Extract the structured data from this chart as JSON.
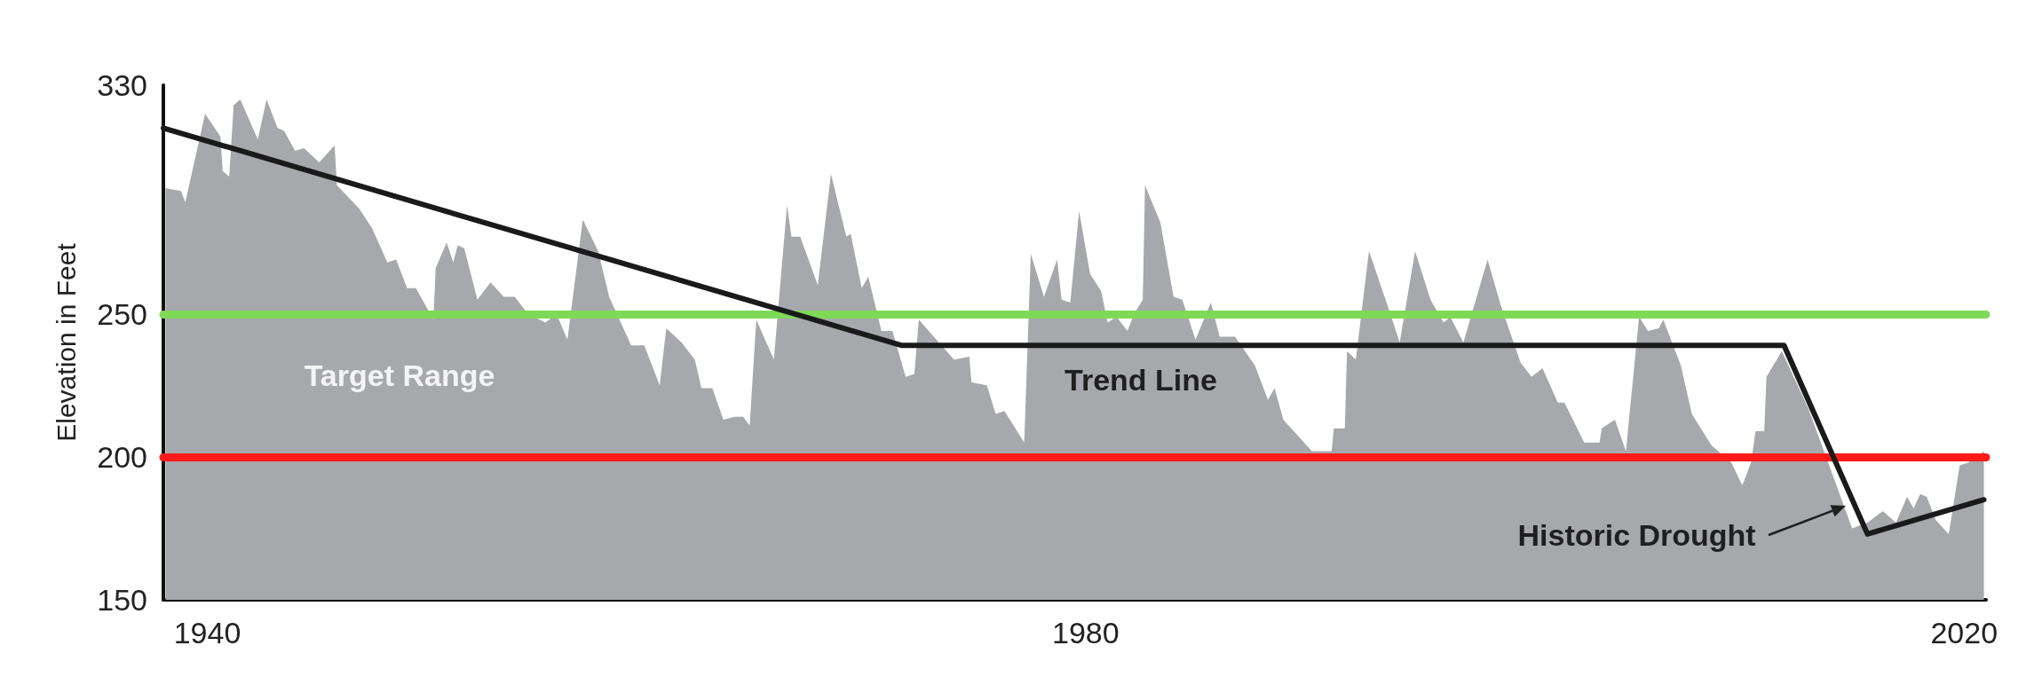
{
  "chart_data": {
    "type": "area",
    "ylabel": "Elevation in Feet",
    "xlim": [
      1938,
      2021
    ],
    "xticks": [
      1940,
      1980,
      2020
    ],
    "ylim": [
      150,
      330
    ],
    "yticks": [
      150,
      200,
      250,
      330
    ],
    "series": [
      {
        "color": "#a7a8ab",
        "x": [
          1938.1,
          1938.8,
          1939.0,
          1939.9,
          1940.6,
          1940.7,
          1941.0,
          1941.2,
          1941.5,
          1942.3,
          1942.7,
          1943.2,
          1943.5,
          1944.0,
          1944.4,
          1945.1,
          1945.8,
          1945.9,
          1946.9,
          1947.5,
          1948.2,
          1948.6,
          1949.1,
          1949.5,
          1950.3,
          1950.4,
          1950.9,
          1951.2,
          1951.4,
          1951.7,
          1952.3,
          1952.9,
          1953.5,
          1954.0,
          1954.6,
          1955.4,
          1955.9,
          1956.4,
          1957.1,
          1957.8,
          1958.3,
          1959.3,
          1959.9,
          1960.6,
          1960.9,
          1961.6,
          1962.2,
          1962.5,
          1963.0,
          1963.5,
          1964.0,
          1964.4,
          1964.7,
          1965.0,
          1965.8,
          1966.4,
          1966.6,
          1967.0,
          1967.8,
          1968.4,
          1969.1,
          1969.3,
          1969.8,
          1970.1,
          1970.7,
          1971.2,
          1971.8,
          1972.2,
          1972.4,
          1973.2,
          1974.0,
          1974.7,
          1974.8,
          1975.5,
          1975.9,
          1976.3,
          1977.2,
          1977.5,
          1978.1,
          1978.7,
          1978.9,
          1979.3,
          1979.7,
          1980.2,
          1980.7,
          1981.0,
          1981.4,
          1981.9,
          1982.2,
          1982.6,
          1982.7,
          1983.4,
          1984.0,
          1984.4,
          1985.0,
          1985.7,
          1986.1,
          1986.8,
          1987.7,
          1988.3,
          1988.6,
          1989.0,
          1990.3,
          1991.2,
          1991.3,
          1991.8,
          1991.9,
          1992.3,
          1992.9,
          1993.7,
          1994.3,
          1995.0,
          1995.7,
          1996.3,
          1996.6,
          1997.2,
          1998.3,
          1998.9,
          1999.8,
          2000.3,
          2000.8,
          2001.5,
          2001.8,
          2002.7,
          2003.4,
          2003.5,
          2004.1,
          2004.6,
          2005.2,
          2005.6,
          2006.1,
          2006.3,
          2007.1,
          2007.6,
          2008.5,
          2009.4,
          2009.9,
          2010.3,
          2010.5,
          2010.9,
          2011.0,
          2011.7,
          2012.9,
          2014.0,
          2014.9,
          2015.6,
          2016.3,
          2016.9,
          2017.4,
          2017.7,
          2018.0,
          2018.3,
          2018.7,
          2019.3,
          2019.8,
          2020.2,
          2020.9
        ],
        "values": [
          294,
          293,
          289,
          320,
          312,
          300,
          298,
          323,
          325,
          311,
          325,
          315,
          314,
          307,
          308,
          303,
          309,
          295,
          287,
          280,
          268,
          269,
          259,
          259,
          248,
          266,
          275,
          268,
          274,
          273,
          255,
          261,
          256,
          256,
          250,
          247,
          250,
          241,
          283,
          272,
          256,
          239,
          239,
          225,
          245,
          240,
          234,
          224,
          224,
          213,
          214,
          214,
          211,
          248,
          234,
          288,
          277,
          277,
          260,
          299,
          277,
          278,
          259,
          263,
          244,
          244,
          228,
          229,
          248,
          241,
          234,
          235,
          226,
          225,
          215,
          216,
          205,
          271,
          256,
          269,
          255,
          254,
          286,
          264,
          258,
          247,
          249,
          244,
          250,
          255,
          295,
          282,
          256,
          255,
          241,
          254,
          242,
          242,
          232,
          220,
          224,
          213,
          202,
          202,
          210,
          210,
          237,
          234,
          272,
          254,
          240,
          272,
          255,
          247,
          249,
          240,
          269,
          253,
          233,
          228,
          231,
          219,
          219,
          205,
          205,
          210,
          213,
          202,
          249,
          244,
          245,
          248,
          232,
          215,
          204,
          198,
          190,
          198,
          209,
          209,
          228,
          237,
          217,
          194,
          175,
          177,
          181,
          177,
          186,
          182,
          187,
          186,
          178,
          173,
          197,
          198,
          202
        ]
      },
      {
        "type": "line",
        "color": "#1a1a1a",
        "x": [
          1938,
          1971.6,
          2011.8,
          2015.6,
          2020.9
        ],
        "values": [
          315,
          239,
          239,
          173,
          185
        ]
      }
    ],
    "ref_lines": [
      {
        "axis": "y",
        "value": 250,
        "color": "#7ed957"
      },
      {
        "axis": "y",
        "value": 200,
        "color": "#ff1a1a"
      }
    ],
    "annotations": [
      "Target Range",
      "Trend Line",
      {
        "text": "Historic Drought",
        "x": 2014.6,
        "y": 183
      }
    ]
  }
}
